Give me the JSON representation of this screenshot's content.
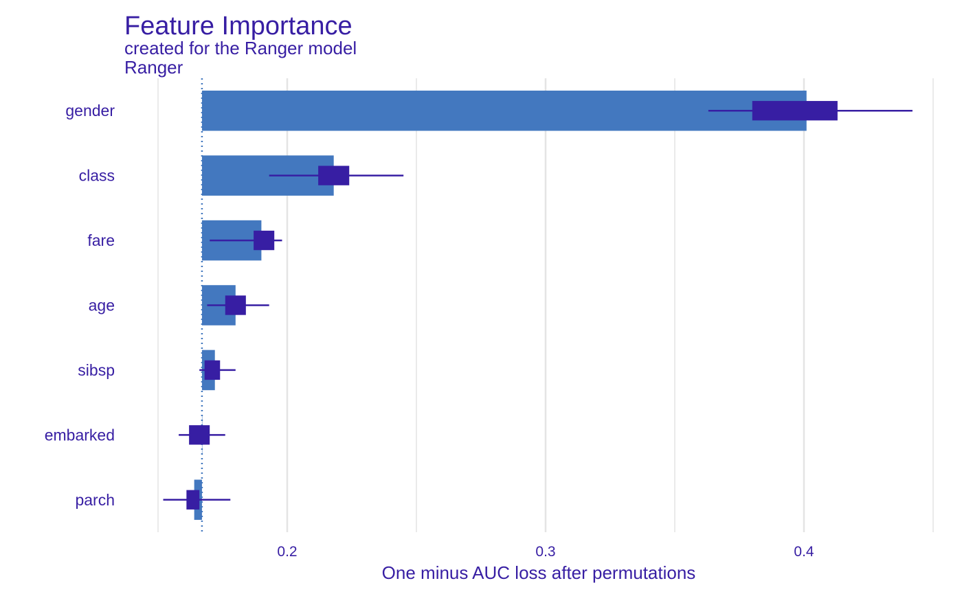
{
  "chart_data": {
    "type": "bar",
    "title": "Feature Importance",
    "subtitle": "created for the Ranger model",
    "facet_label": "Ranger",
    "xlabel": "One minus AUC loss after permutations",
    "ylabel": "",
    "xlim": [
      0.15,
      0.45
    ],
    "x_ticks": [
      0.2,
      0.3,
      0.4
    ],
    "x_tick_labels": [
      "0.2",
      "0.3",
      "0.4"
    ],
    "baseline": 0.167,
    "grid": "vertical",
    "legend": "none",
    "categories": [
      "gender",
      "class",
      "fare",
      "age",
      "sibsp",
      "embarked",
      "parch"
    ],
    "values": [
      0.401,
      0.218,
      0.19,
      0.18,
      0.172,
      0.167,
      0.164
    ],
    "box_low": [
      0.38,
      0.212,
      0.187,
      0.176,
      0.168,
      0.162,
      0.161
    ],
    "box_high": [
      0.413,
      0.224,
      0.195,
      0.184,
      0.174,
      0.17,
      0.166
    ],
    "whisker_low": [
      0.363,
      0.193,
      0.17,
      0.169,
      0.166,
      0.158,
      0.152
    ],
    "whisker_high": [
      0.442,
      0.245,
      0.198,
      0.193,
      0.18,
      0.176,
      0.178
    ],
    "colors": {
      "bar": "#4378BF",
      "box": "#371EA3",
      "text": "#371EA3",
      "grid": "#E4E4E4",
      "baseline": "#4378BF"
    }
  }
}
